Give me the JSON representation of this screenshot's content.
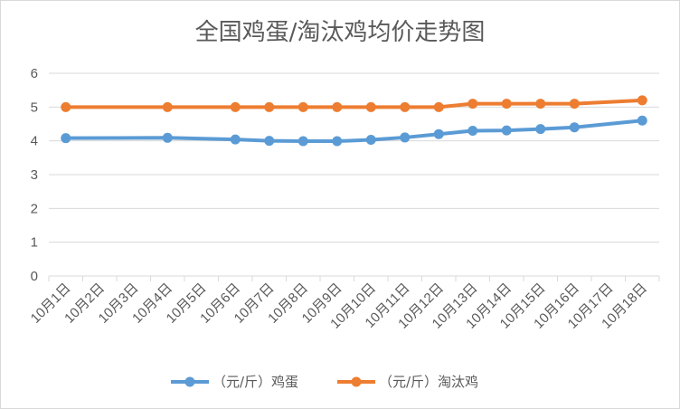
{
  "chart_data": {
    "type": "line",
    "title": "全国鸡蛋/淘汰鸡均价走势图",
    "xlabel": "",
    "ylabel": "",
    "categories": [
      "10月1日",
      "10月2日",
      "10月3日",
      "10月4日",
      "10月5日",
      "10月6日",
      "10月7日",
      "10月8日",
      "10月9日",
      "10月10日",
      "10月11日",
      "10月12日",
      "10月13日",
      "10月14日",
      "10月15日",
      "10月16日",
      "10月17日",
      "10月18日"
    ],
    "ylim": [
      0,
      6
    ],
    "yticks": [
      "0",
      "1",
      "2",
      "3",
      "4",
      "5",
      "6"
    ],
    "grid": true,
    "legend_position": "bottom",
    "series": [
      {
        "name": "（元/斤）鸡蛋",
        "color": "#5B9BD5",
        "values": [
          4.08,
          null,
          null,
          4.09,
          null,
          4.04,
          4.0,
          3.99,
          3.99,
          4.03,
          4.1,
          4.2,
          4.3,
          4.31,
          4.35,
          4.4,
          null,
          4.6
        ]
      },
      {
        "name": "（元/斤）淘汰鸡",
        "color": "#ED7D31",
        "values": [
          5.0,
          null,
          null,
          5.0,
          null,
          5.0,
          5.0,
          5.0,
          5.0,
          5.0,
          5.0,
          5.0,
          5.1,
          5.1,
          5.1,
          5.1,
          null,
          5.2
        ]
      }
    ]
  }
}
